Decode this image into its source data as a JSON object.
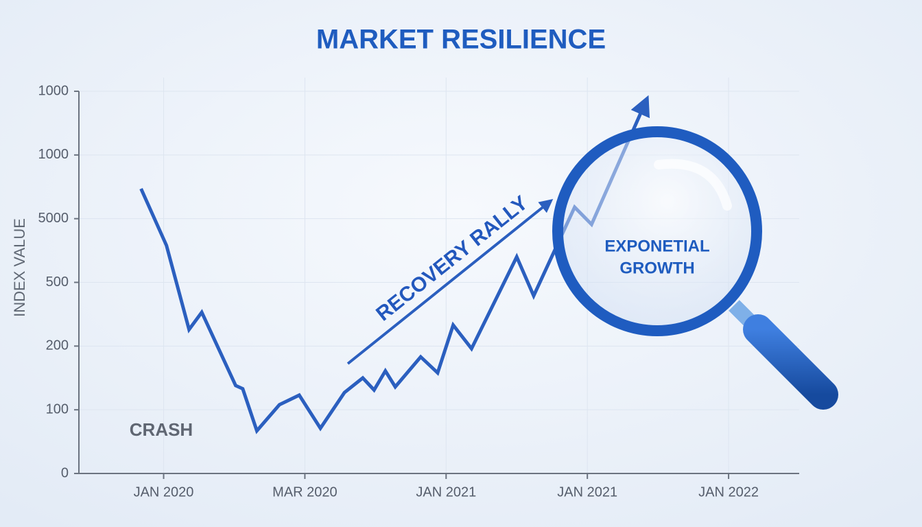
{
  "chart_data": {
    "type": "line",
    "title": "MARKET RESILIENCE",
    "y_label": "INDEX VALUE",
    "x": [
      -0.16,
      0.02,
      0.18,
      0.27,
      0.51,
      0.56,
      0.66,
      0.82,
      0.96,
      1.11,
      1.28,
      1.41,
      1.49,
      1.57,
      1.64,
      1.82,
      1.94,
      2.05,
      2.18,
      2.5,
      2.62,
      2.91,
      3.03,
      3.41
    ],
    "series": [
      {
        "color": "#2b5fbf",
        "values": [
          4.47,
          3.58,
          2.26,
          2.53,
          1.38,
          1.33,
          0.67,
          1.08,
          1.23,
          0.71,
          1.27,
          1.5,
          1.31,
          1.61,
          1.36,
          1.83,
          1.58,
          2.33,
          1.96,
          3.4,
          2.79,
          4.18,
          3.91,
          5.82
        ]
      }
    ],
    "xlim": [
      -0.6,
      4.5
    ],
    "xticks": [
      {
        "value": 0,
        "label": "JAN 2020"
      },
      {
        "value": 1,
        "label": "MAR 2020"
      },
      {
        "value": 2,
        "label": "JAN 2021"
      },
      {
        "value": 3,
        "label": "JAN 2021"
      },
      {
        "value": 4,
        "label": "JAN 2022"
      }
    ],
    "ylim": [
      0,
      6
    ],
    "yticks": [
      0,
      {
        "value": 1,
        "label": "100"
      },
      {
        "value": 2,
        "label": "200"
      },
      {
        "value": 3,
        "label": "500"
      },
      {
        "value": 4,
        "label": "5000"
      },
      {
        "value": 5,
        "label": "1000"
      },
      {
        "value": 6,
        "label": "1000"
      }
    ],
    "grid": true,
    "annotations": {
      "crash": "CRASH",
      "recovery": "RECOVERY RALLY",
      "growth": [
        "EXPONETIAL",
        "GROWTH"
      ]
    }
  }
}
